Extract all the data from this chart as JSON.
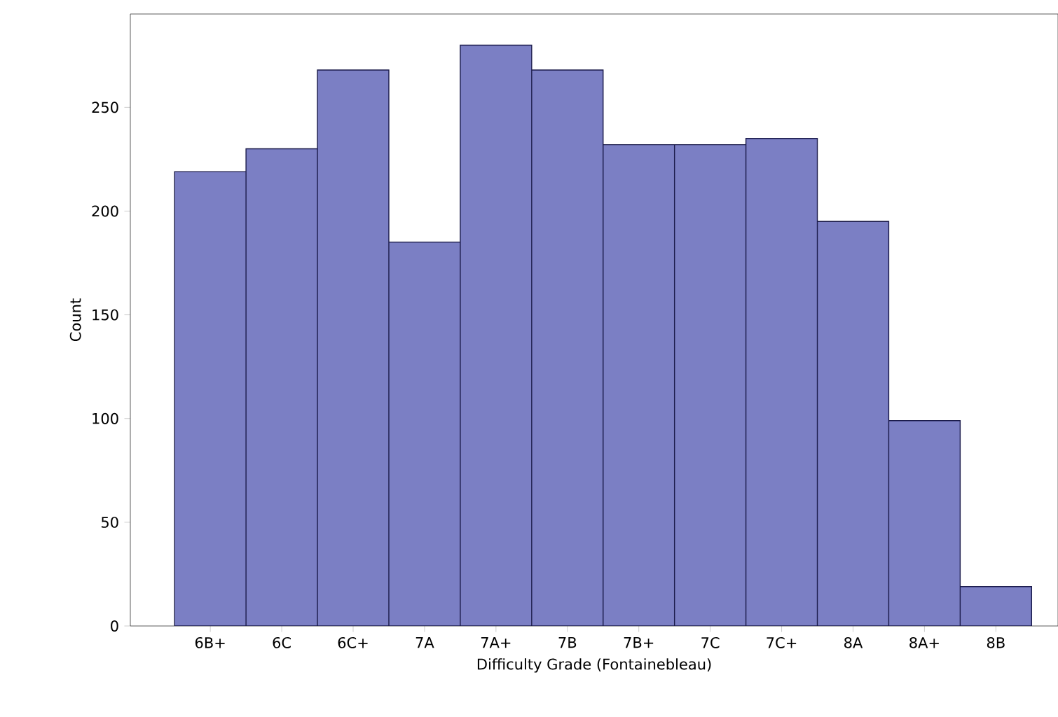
{
  "chart_data": {
    "type": "bar",
    "xlabel": "Difficulty Grade (Fontainebleau)",
    "ylabel": "Count",
    "categories": [
      "6B+",
      "6C",
      "6C+",
      "7A",
      "7A+",
      "7B",
      "7B+",
      "7C",
      "7C+",
      "8A",
      "8A+",
      "8B"
    ],
    "values": [
      219,
      230,
      268,
      185,
      280,
      268,
      232,
      232,
      235,
      195,
      99,
      19
    ],
    "color": "#7b7fc4",
    "ylim": [
      0,
      295
    ],
    "yticks": [
      0,
      50,
      100,
      150,
      200,
      250
    ],
    "grid": false
  }
}
